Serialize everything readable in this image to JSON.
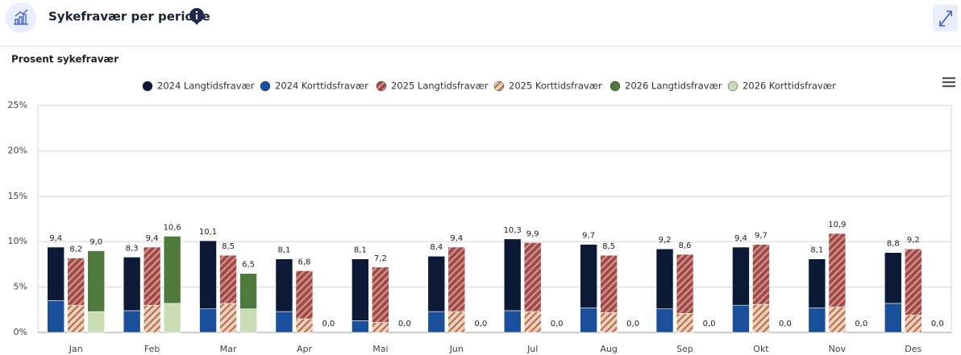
{
  "header": {
    "title": "Sykefravær per periode"
  },
  "chart_data": {
    "type": "stacked-bar",
    "y_axis_title": "Prosent sykefravær",
    "categories": [
      "Jan",
      "Feb",
      "Mar",
      "Apr",
      "Mai",
      "Jun",
      "Jul",
      "Aug",
      "Sep",
      "Okt",
      "Nov",
      "Des"
    ],
    "ylim": [
      0,
      25
    ],
    "yticks": [
      {
        "value": 0,
        "label": "0%"
      },
      {
        "value": 5,
        "label": "5%"
      },
      {
        "value": 10,
        "label": "10%"
      },
      {
        "value": 15,
        "label": "15%"
      },
      {
        "value": 20,
        "label": "20%"
      },
      {
        "value": 25,
        "label": "25%"
      }
    ],
    "grid": true,
    "legend": "top",
    "groups": [
      {
        "series": [
          {
            "name": "2024 Korttidsfravær",
            "color": "#1a4f9c",
            "values": [
              3.5,
              2.4,
              2.6,
              2.3,
              1.3,
              2.3,
              2.4,
              2.7,
              2.6,
              3.0,
              2.7,
              3.2
            ]
          },
          {
            "name": "2024 Langtidsfravær",
            "color": "#0c1a38",
            "values": [
              5.9,
              5.9,
              7.5,
              5.8,
              6.8,
              6.1,
              7.9,
              7.0,
              6.6,
              6.4,
              5.4,
              5.6
            ]
          }
        ],
        "total_labels": [
          "9,4",
          "8,3",
          "10,1",
          "8,1",
          "8,1",
          "8,4",
          "10,3",
          "9,7",
          "9,2",
          "9,4",
          "8,1",
          "8,8"
        ]
      },
      {
        "series": [
          {
            "name": "2025 Korttidsfravær",
            "color": "#f3cdb3",
            "stripe": "#a3705a",
            "values": [
              3.0,
              3.0,
              3.2,
              1.5,
              1.1,
              2.3,
              2.3,
              2.2,
              2.1,
              3.1,
              2.8,
              1.9
            ]
          },
          {
            "name": "2025 Langtidsfravær",
            "color": "#a14a4a",
            "stripe": "#d79a92",
            "values": [
              5.2,
              6.4,
              5.3,
              5.3,
              6.1,
              7.1,
              7.6,
              6.3,
              6.5,
              6.6,
              8.1,
              7.3
            ]
          }
        ],
        "total_labels": [
          "8,2",
          "9,4",
          "8,5",
          "6,8",
          "7,2",
          "9,4",
          "9,9",
          "8,5",
          "8,6",
          "9,7",
          "10,9",
          "9,2"
        ]
      },
      {
        "series": [
          {
            "name": "2026 Korttidsfravær",
            "color": "#c9dcb3",
            "values": [
              2.3,
              3.2,
              2.6,
              0,
              0,
              0,
              0,
              0,
              0,
              0,
              0,
              0
            ]
          },
          {
            "name": "2026 Langtidsfravær",
            "color": "#4e7a3e",
            "values": [
              6.7,
              7.4,
              3.9,
              0,
              0,
              0,
              0,
              0,
              0,
              0,
              0,
              0
            ]
          }
        ],
        "total_labels": [
          "9,0",
          "10,6",
          "6,5",
          "0,0",
          "0,0",
          "0,0",
          "0,0",
          "0,0",
          "0,0",
          "0,0",
          "0,0",
          "0,0"
        ]
      }
    ]
  }
}
